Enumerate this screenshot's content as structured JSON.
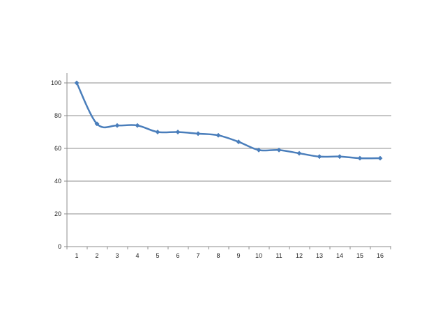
{
  "chart_data": {
    "type": "line",
    "title": "",
    "xlabel": "",
    "ylabel": "",
    "x": [
      1,
      2,
      3,
      4,
      5,
      6,
      7,
      8,
      9,
      10,
      11,
      12,
      13,
      14,
      15,
      16
    ],
    "series": [
      {
        "values": [
          100,
          75,
          74,
          74,
          70,
          70,
          69,
          68,
          64,
          59,
          59,
          57,
          55,
          55,
          54,
          54
        ]
      }
    ],
    "ylim": [
      0,
      100
    ],
    "y_ticks": [
      0,
      20,
      40,
      60,
      80,
      100
    ],
    "grid": "horizontal",
    "legend": "none",
    "smooth": true,
    "line_color": "#4a7ebb",
    "marker": "diamond"
  }
}
